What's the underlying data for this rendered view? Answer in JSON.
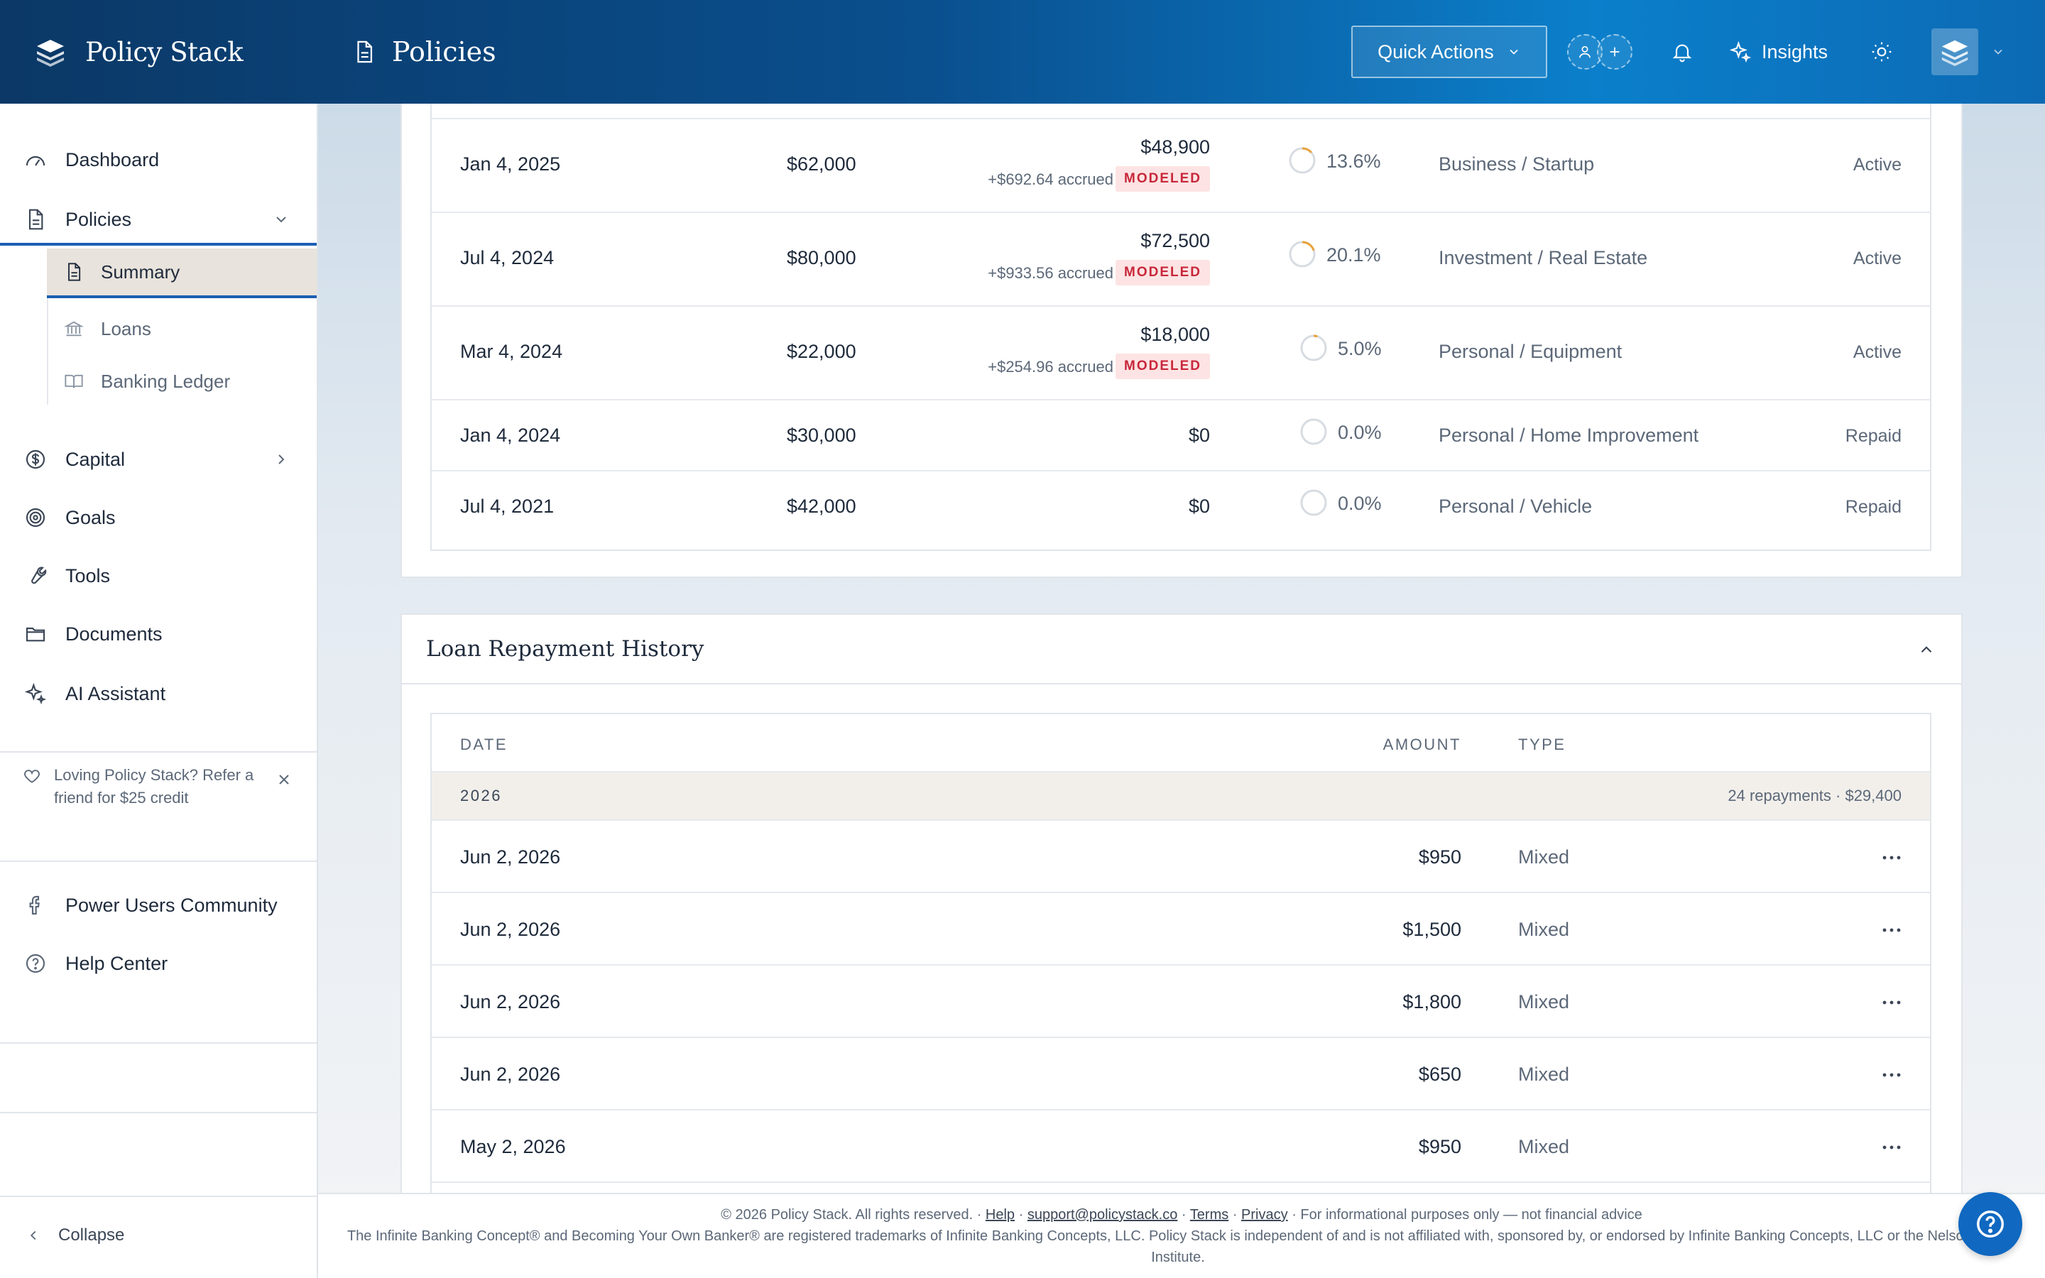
{
  "app": {
    "name": "Policy Stack"
  },
  "header": {
    "page_title": "Policies",
    "quick_actions_label": "Quick Actions",
    "insights_label": "Insights"
  },
  "sidebar": {
    "items": [
      {
        "label": "Dashboard",
        "icon": "gauge-icon"
      },
      {
        "label": "Policies",
        "icon": "document-icon"
      },
      {
        "label": "Capital",
        "icon": "dollar-circle-icon"
      },
      {
        "label": "Goals",
        "icon": "target-icon"
      },
      {
        "label": "Tools",
        "icon": "wrench-icon"
      },
      {
        "label": "Documents",
        "icon": "folder-icon"
      },
      {
        "label": "AI Assistant",
        "icon": "sparkles-icon"
      }
    ],
    "sub_items": [
      {
        "label": "Summary",
        "icon": "document-icon"
      },
      {
        "label": "Loans",
        "icon": "bank-icon"
      },
      {
        "label": "Banking Ledger",
        "icon": "book-icon"
      }
    ],
    "promo_text": "Loving Policy Stack? Refer a friend for $25 credit",
    "community_label": "Power Users Community",
    "help_label": "Help Center",
    "collapse_label": "Collapse"
  },
  "loans_table": {
    "rows": [
      {
        "date": "Jan 4, 2025",
        "original": "$62,000",
        "balance": "$48,900",
        "accrued": "+$692.64 accrued",
        "badge": "MODELED",
        "rate": "13.6%",
        "rate_value": 13.6,
        "purpose": "Business / Startup",
        "status": "Active"
      },
      {
        "date": "Jul 4, 2024",
        "original": "$80,000",
        "balance": "$72,500",
        "accrued": "+$933.56 accrued",
        "badge": "MODELED",
        "rate": "20.1%",
        "rate_value": 20.1,
        "purpose": "Investment / Real Estate",
        "status": "Active"
      },
      {
        "date": "Mar 4, 2024",
        "original": "$22,000",
        "balance": "$18,000",
        "accrued": "+$254.96 accrued",
        "badge": "MODELED",
        "rate": "5.0%",
        "rate_value": 5.0,
        "purpose": "Personal / Equipment",
        "status": "Active"
      },
      {
        "date": "Jan 4, 2024",
        "original": "$30,000",
        "balance": "$0",
        "rate": "0.0%",
        "rate_value": 0,
        "purpose": "Personal / Home Improvement",
        "status": "Repaid"
      },
      {
        "date": "Jul 4, 2021",
        "original": "$42,000",
        "balance": "$0",
        "rate": "0.0%",
        "rate_value": 0,
        "purpose": "Personal / Vehicle",
        "status": "Repaid"
      }
    ]
  },
  "repayment_history": {
    "title": "Loan Repayment History",
    "columns": {
      "date": "DATE",
      "amount": "AMOUNT",
      "type": "TYPE"
    },
    "year_group": {
      "year": "2026",
      "summary": "24 repayments · $29,400"
    },
    "rows": [
      {
        "date": "Jun 2, 2026",
        "amount": "$950",
        "type": "Mixed"
      },
      {
        "date": "Jun 2, 2026",
        "amount": "$1,500",
        "type": "Mixed"
      },
      {
        "date": "Jun 2, 2026",
        "amount": "$1,800",
        "type": "Mixed"
      },
      {
        "date": "Jun 2, 2026",
        "amount": "$650",
        "type": "Mixed"
      },
      {
        "date": "May 2, 2026",
        "amount": "$950",
        "type": "Mixed"
      }
    ]
  },
  "footer": {
    "copyright": "© 2026 Policy Stack. All rights reserved. ·",
    "help_link": "Help",
    "sep1": "·",
    "support_link": "support@policystack.co",
    "sep2": "·",
    "terms_link": "Terms",
    "sep3": "·",
    "privacy_link": "Privacy",
    "disclaimer": "· For informational purposes only — not financial advice",
    "trademark": "The Infinite Banking Concept® and Becoming Your Own Banker® are registered trademarks of Infinite Banking Concepts, LLC. Policy Stack is independent of and is not affiliated with, sponsored by, or endorsed by Infinite Banking Concepts, LLC or the Nelson Nash Institute."
  },
  "colors": {
    "accent": "#1b5fb3",
    "modeled_badge": "#c8273a",
    "ring_progress": "#e8a23a"
  }
}
